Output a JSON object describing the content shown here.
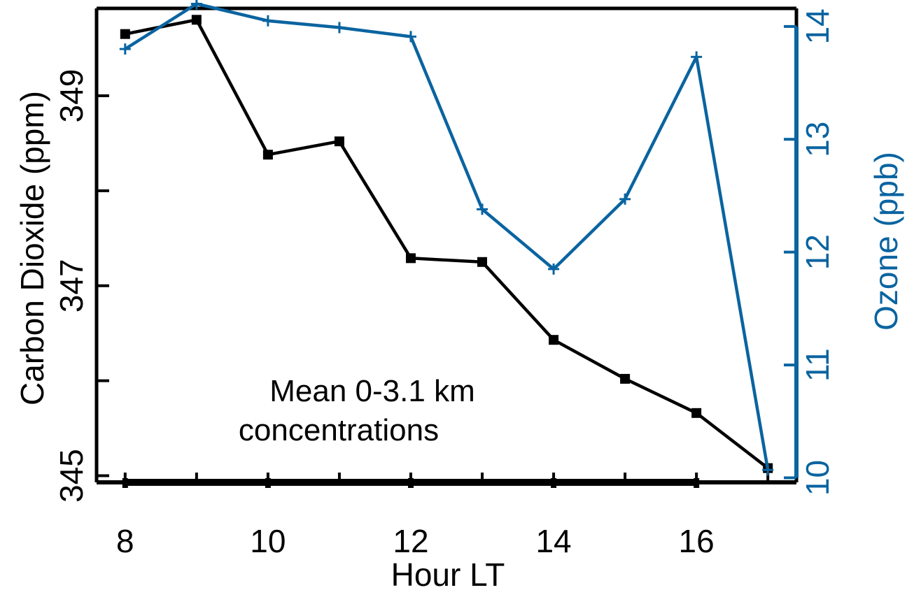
{
  "chart_data": {
    "type": "line",
    "title": "",
    "xlabel": "Hour LT",
    "ylabel": "Carbon Dioxide (ppm)",
    "y2label": "Ozone (ppb)",
    "xlim": [
      7.6,
      17.4
    ],
    "ylim": [
      344.93,
      349.92
    ],
    "y2lim": [
      9.96,
      14.16
    ],
    "xticks": [
      8,
      10,
      12,
      14,
      16
    ],
    "yticks": [
      345,
      347,
      349
    ],
    "y2ticks": [
      10,
      11,
      12,
      13,
      14
    ],
    "grid": false,
    "annotation": [
      "Mean 0-3.1 km",
      "concentrations"
    ],
    "colors": {
      "co2": "#000000",
      "ozone": "#0a64a0"
    },
    "series": [
      {
        "axis": "left",
        "marker": "square",
        "x": [
          8,
          9,
          10,
          11,
          12,
          13,
          14,
          15,
          16,
          17
        ],
        "values": [
          349.65,
          349.8,
          348.38,
          348.52,
          347.29,
          347.25,
          346.43,
          346.02,
          345.66,
          345.08
        ]
      },
      {
        "axis": "right",
        "marker": "plus",
        "x": [
          8,
          9,
          10,
          11,
          12,
          13,
          14,
          15,
          16,
          17
        ],
        "values": [
          13.8,
          14.2,
          14.05,
          13.99,
          13.91,
          12.38,
          11.85,
          12.47,
          13.73,
          10.07
        ]
      }
    ]
  }
}
